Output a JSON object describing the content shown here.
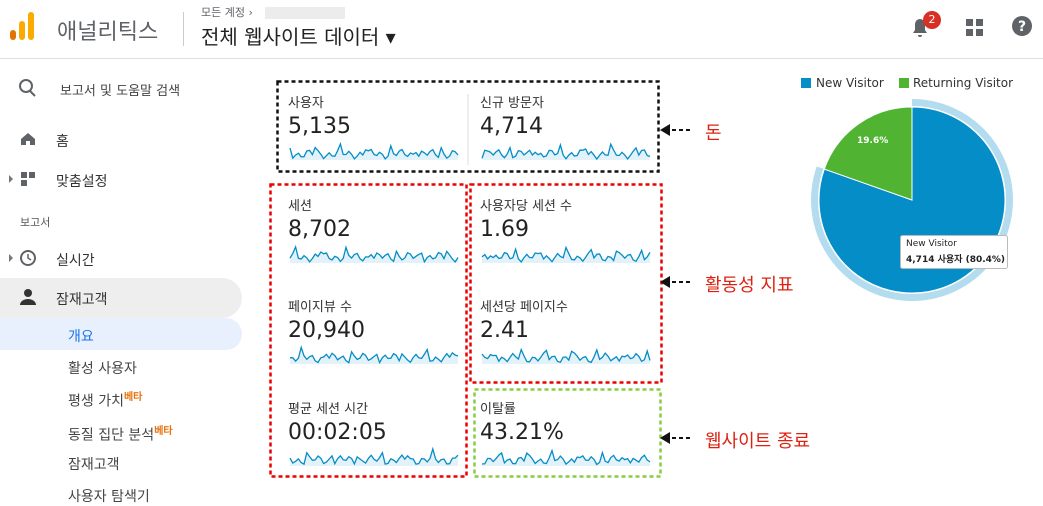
{
  "header": {
    "app_name": "애널리틱스",
    "breadcrumb": "모든 계정",
    "view_name": "전체 웹사이트 데이터",
    "notification_count": "2"
  },
  "sidebar": {
    "search": "보고서 및 도움말 검색",
    "home": "홈",
    "customization": "맞춤설정",
    "section": "보고서",
    "realtime": "실시간",
    "audience": "잠재고객",
    "sub_items": [
      {
        "label": "개요"
      },
      {
        "label": "활성 사용자"
      },
      {
        "label": "평생 가치",
        "badge": "베타"
      },
      {
        "label": "동질 집단 분석",
        "badge": "베타"
      },
      {
        "label": "잠재고객"
      },
      {
        "label": "사용자 탐색기"
      }
    ]
  },
  "metrics": [
    {
      "label": "사용자",
      "value": "5,135"
    },
    {
      "label": "신규 방문자",
      "value": "4,714"
    },
    {
      "label": "세션",
      "value": "8,702"
    },
    {
      "label": "사용자당 세션 수",
      "value": "1.69"
    },
    {
      "label": "페이지뷰 수",
      "value": "20,940"
    },
    {
      "label": "세션당 페이지수",
      "value": "2.41"
    },
    {
      "label": "평균 세션 시간",
      "value": "00:02:05"
    },
    {
      "label": "이탈률",
      "value": "43.21%"
    }
  ],
  "annotations": [
    "돈",
    "활동성 지표",
    "웹사이트 종료"
  ],
  "pie": {
    "slices": [
      {
        "name": "New Visitor",
        "color": "#058dc7",
        "value": 80.4
      },
      {
        "name": "Returning Visitor",
        "color": "#50b432",
        "value": 19.6,
        "label": "19.6%"
      }
    ],
    "tooltip": {
      "title": "New Visitor",
      "text": "4,714 사용자 (80.4%)"
    }
  }
}
